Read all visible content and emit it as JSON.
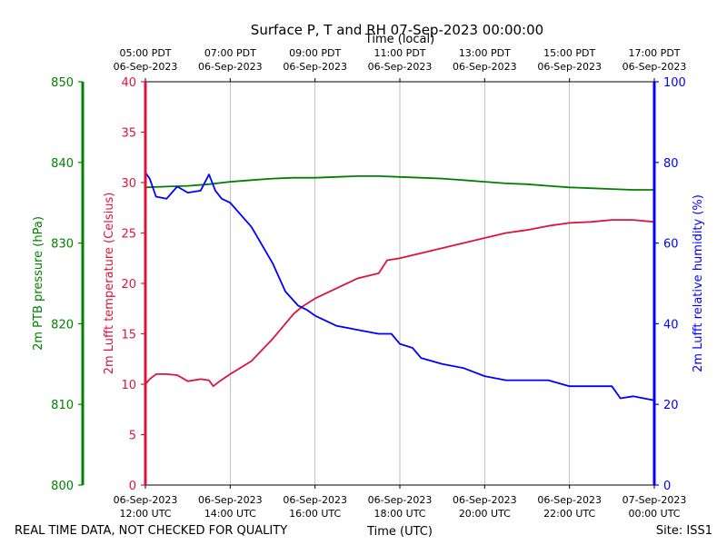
{
  "chart_data": {
    "type": "line",
    "title": "Surface P, T and RH 07-Sep-2023 00:00:00",
    "top_axis_label": "Time (local)",
    "xlabel": "Time (UTC)",
    "footer_left": "REAL TIME DATA, NOT CHECKED FOR QUALITY",
    "footer_right": "Site: ISS1",
    "x_range_hours_utc": [
      12,
      24
    ],
    "x_ticks": [
      {
        "hour": 12,
        "utc_line1": "06-Sep-2023",
        "utc_line2": "12:00 UTC",
        "local_line1": "05:00 PDT",
        "local_line2": "06-Sep-2023"
      },
      {
        "hour": 14,
        "utc_line1": "06-Sep-2023",
        "utc_line2": "14:00 UTC",
        "local_line1": "07:00 PDT",
        "local_line2": "06-Sep-2023"
      },
      {
        "hour": 16,
        "utc_line1": "06-Sep-2023",
        "utc_line2": "16:00 UTC",
        "local_line1": "09:00 PDT",
        "local_line2": "06-Sep-2023"
      },
      {
        "hour": 18,
        "utc_line1": "06-Sep-2023",
        "utc_line2": "18:00 UTC",
        "local_line1": "11:00 PDT",
        "local_line2": "06-Sep-2023"
      },
      {
        "hour": 20,
        "utc_line1": "06-Sep-2023",
        "utc_line2": "20:00 UTC",
        "local_line1": "13:00 PDT",
        "local_line2": "06-Sep-2023"
      },
      {
        "hour": 22,
        "utc_line1": "06-Sep-2023",
        "utc_line2": "22:00 UTC",
        "local_line1": "15:00 PDT",
        "local_line2": "06-Sep-2023"
      },
      {
        "hour": 24,
        "utc_line1": "07-Sep-2023",
        "utc_line2": "00:00 UTC",
        "local_line1": "17:00 PDT",
        "local_line2": "06-Sep-2023"
      }
    ],
    "axes": {
      "pressure": {
        "label": "2m PTB pressure (hPa)",
        "color": "#008000",
        "ylim": [
          800,
          850
        ],
        "ticks": [
          800,
          810,
          820,
          830,
          840,
          850
        ]
      },
      "temperature": {
        "label": "2m Lufft temperature (Celsius)",
        "color": "#dc143c",
        "ylim": [
          0,
          40
        ],
        "ticks": [
          0,
          5,
          10,
          15,
          20,
          25,
          30,
          35,
          40
        ]
      },
      "humidity": {
        "label": "2m Lufft relative humidity (%)",
        "color": "#0000ff",
        "ylim": [
          0,
          100
        ],
        "ticks": [
          0,
          20,
          40,
          60,
          80,
          100
        ]
      }
    },
    "grid": "vertical",
    "series": [
      {
        "axis": "pressure",
        "color": "#008000",
        "x": [
          12.0,
          12.5,
          13.0,
          13.5,
          14.0,
          14.5,
          15.0,
          15.5,
          16.0,
          16.5,
          17.0,
          17.5,
          18.0,
          18.5,
          19.0,
          19.5,
          20.0,
          20.5,
          21.0,
          21.5,
          22.0,
          22.5,
          23.0,
          23.5,
          24.0
        ],
        "y": [
          836.9,
          837.0,
          837.1,
          837.3,
          837.6,
          837.8,
          838.0,
          838.1,
          838.1,
          838.2,
          838.3,
          838.3,
          838.2,
          838.1,
          838.0,
          837.8,
          837.6,
          837.4,
          837.3,
          837.1,
          836.9,
          836.8,
          836.7,
          836.6,
          836.6
        ]
      },
      {
        "axis": "temperature",
        "color": "#dc143c",
        "x": [
          12.0,
          12.1,
          12.25,
          12.5,
          12.75,
          13.0,
          13.3,
          13.5,
          13.6,
          13.75,
          14.0,
          14.5,
          15.0,
          15.5,
          15.7,
          16.0,
          16.5,
          17.0,
          17.5,
          17.7,
          18.0,
          18.5,
          19.0,
          19.5,
          20.0,
          20.5,
          21.0,
          21.5,
          22.0,
          22.5,
          23.0,
          23.5,
          24.0
        ],
        "y": [
          10.0,
          10.5,
          11.0,
          11.0,
          10.9,
          10.3,
          10.5,
          10.4,
          9.8,
          10.3,
          11.0,
          12.3,
          14.5,
          17.0,
          17.7,
          18.5,
          19.5,
          20.5,
          21.0,
          22.3,
          22.5,
          23.0,
          23.5,
          24.0,
          24.5,
          25.0,
          25.3,
          25.7,
          26.0,
          26.1,
          26.3,
          26.3,
          26.1
        ]
      },
      {
        "axis": "humidity",
        "color": "#0000ff",
        "x": [
          12.0,
          12.1,
          12.25,
          12.5,
          12.75,
          13.0,
          13.3,
          13.5,
          13.65,
          13.8,
          14.0,
          14.5,
          15.0,
          15.3,
          15.6,
          15.8,
          16.0,
          16.5,
          17.0,
          17.5,
          17.8,
          18.0,
          18.3,
          18.5,
          19.0,
          19.5,
          20.0,
          20.5,
          21.0,
          21.5,
          22.0,
          22.5,
          23.0,
          23.2,
          23.5,
          24.0
        ],
        "y": [
          77.5,
          76.0,
          71.5,
          71.0,
          74.0,
          72.5,
          73.0,
          77.0,
          73.0,
          71.0,
          70.0,
          64.0,
          55.0,
          48.0,
          44.5,
          43.5,
          42.0,
          39.5,
          38.5,
          37.5,
          37.5,
          35.0,
          34.0,
          31.5,
          30.0,
          29.0,
          27.0,
          26.0,
          26.0,
          26.0,
          24.5,
          24.5,
          24.5,
          21.5,
          22.0,
          21.0
        ]
      }
    ]
  }
}
